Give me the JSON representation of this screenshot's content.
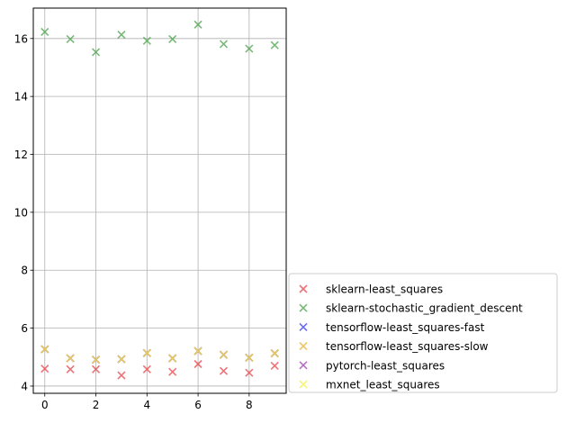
{
  "chart_data": {
    "type": "scatter",
    "title": "",
    "xlabel": "",
    "ylabel": "",
    "xlim": [
      -0.45,
      9.45
    ],
    "ylim": [
      3.75,
      17.05
    ],
    "xticks": [
      0,
      2,
      4,
      6,
      8
    ],
    "yticks": [
      4,
      6,
      8,
      10,
      12,
      14,
      16
    ],
    "grid": true,
    "marker": "x",
    "legend_position": "lower-right",
    "x": [
      0,
      1,
      2,
      3,
      4,
      5,
      6,
      7,
      8,
      9
    ],
    "series": [
      {
        "name": "sklearn-least_squares",
        "color": "#e8444a",
        "values": [
          4.6,
          4.58,
          4.58,
          4.37,
          4.58,
          4.49,
          4.76,
          4.52,
          4.46,
          4.7
        ]
      },
      {
        "name": "sklearn-stochastic_gradient_descent",
        "color": "#4aa24a",
        "values": [
          16.23,
          15.98,
          15.53,
          16.13,
          15.92,
          15.98,
          16.48,
          15.81,
          15.65,
          15.77
        ]
      },
      {
        "name": "tensorflow-least_squares-fast",
        "color": "#3a3af0",
        "values": [
          5.27,
          4.96,
          4.91,
          4.93,
          5.14,
          4.96,
          5.21,
          5.08,
          4.98,
          5.13
        ]
      },
      {
        "name": "tensorflow-least_squares-slow",
        "color": "#e8b030",
        "values": [
          5.27,
          4.96,
          4.91,
          4.93,
          5.14,
          4.96,
          5.21,
          5.08,
          4.98,
          5.13
        ]
      },
      {
        "name": "pytorch-least_squares",
        "color": "#a040b0",
        "values": [
          5.27,
          4.96,
          4.91,
          4.93,
          5.14,
          4.96,
          5.21,
          5.08,
          4.98,
          5.13
        ]
      },
      {
        "name": "mxnet_least_squares",
        "color": "#f5f050",
        "values": [
          5.27,
          4.96,
          4.91,
          4.93,
          5.14,
          4.96,
          5.21,
          5.08,
          4.98,
          5.13
        ]
      }
    ]
  }
}
